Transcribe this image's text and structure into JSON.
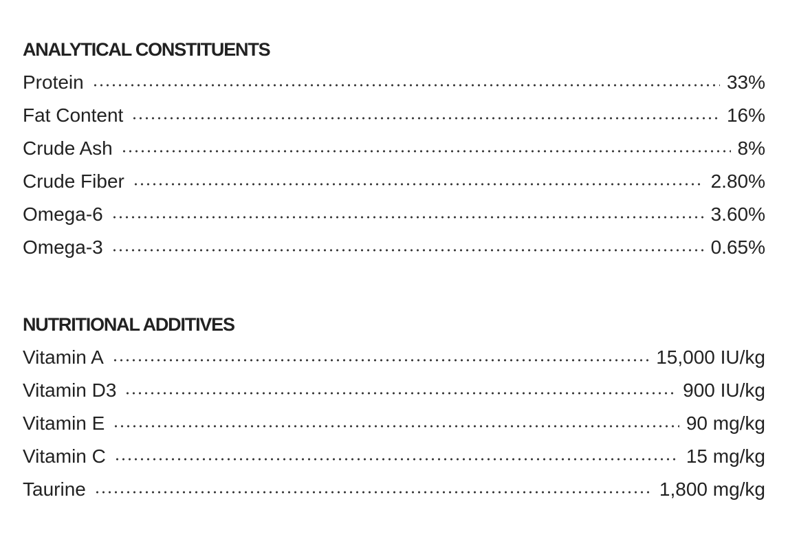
{
  "sections": [
    {
      "title": "ANALYTICAL CONSTITUENTS",
      "rows": [
        {
          "label": "Protein",
          "value": "33%"
        },
        {
          "label": "Fat Content",
          "value": "16%"
        },
        {
          "label": "Crude Ash",
          "value": "8%"
        },
        {
          "label": "Crude Fiber",
          "value": "2.80%"
        },
        {
          "label": "Omega-6",
          "value": "3.60%"
        },
        {
          "label": "Omega-3",
          "value": "0.65%"
        }
      ]
    },
    {
      "title": "NUTRITIONAL ADDITIVES",
      "rows": [
        {
          "label": "Vitamin A",
          "value": "15,000 IU/kg"
        },
        {
          "label": "Vitamin D3",
          "value": "900 IU/kg"
        },
        {
          "label": "Vitamin E",
          "value": "90 mg/kg"
        },
        {
          "label": "Vitamin C",
          "value": "15 mg/kg"
        },
        {
          "label": "Taurine",
          "value": "1,800 mg/kg"
        }
      ]
    }
  ]
}
